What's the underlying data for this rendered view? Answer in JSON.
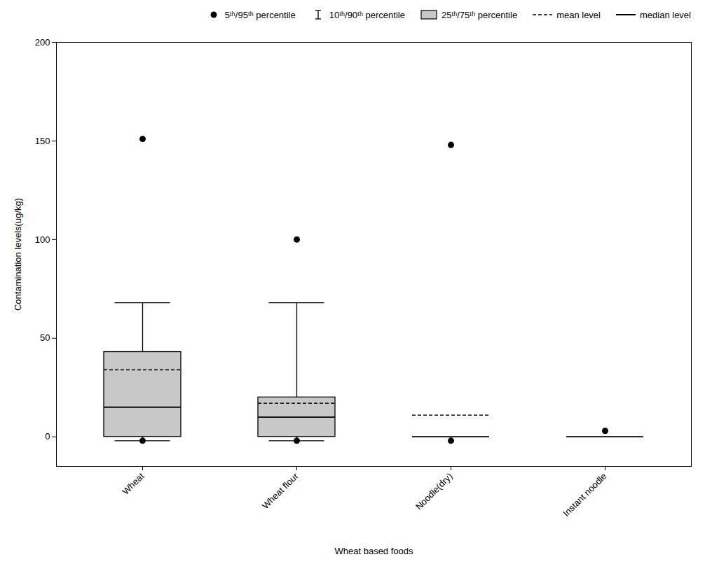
{
  "chart_data": {
    "type": "box",
    "xlabel": "Wheat based foods",
    "ylabel": "Contamination levels(ug/kg)",
    "categories": [
      "Wheat",
      "Wheat flour",
      "Noodle(dry)",
      "Instant noodle"
    ],
    "p5": [
      -2,
      -2,
      -2,
      null
    ],
    "p10": [
      -2,
      -2,
      null,
      null
    ],
    "p25": [
      0,
      0,
      null,
      null
    ],
    "median": [
      15,
      10,
      0,
      0
    ],
    "mean": [
      34,
      17,
      11,
      null
    ],
    "p75": [
      43,
      20,
      null,
      null
    ],
    "p90": [
      68,
      68,
      null,
      null
    ],
    "p95": [
      151,
      100,
      148,
      3
    ],
    "color": "#c8c8c8",
    "ylim": [
      -15,
      200
    ],
    "yticks": [
      0,
      50,
      100,
      150,
      200
    ],
    "legend": "upper right",
    "legend_entries": [
      "5ᵗʰ/95ᵗʰ percentile",
      "10ᵗʰ/90ᵗʰ percentile",
      "25ᵗʰ/75ᵗʰ percentile",
      "mean level",
      "median level"
    ]
  }
}
